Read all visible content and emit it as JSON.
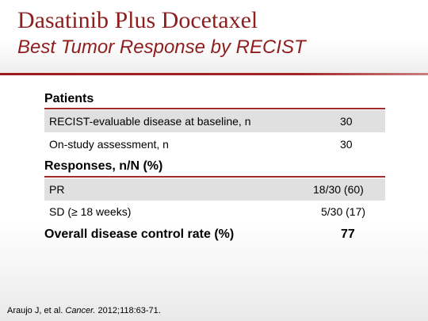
{
  "title": {
    "line1": "Dasatinib Plus Docetaxel",
    "line2": "Best Tumor Response by RECIST"
  },
  "sections": {
    "patients": {
      "heading": "Patients",
      "rows": [
        {
          "label": "RECIST-evaluable disease at baseline, n",
          "value": "30"
        },
        {
          "label": "On-study assessment, n",
          "value": "30"
        }
      ]
    },
    "responses": {
      "heading": "Responses, n/N (%)",
      "rows": [
        {
          "label": "PR",
          "value": "18/30 (60)"
        },
        {
          "label": "SD (≥ 18 weeks)",
          "value": "5/30 (17)"
        }
      ]
    }
  },
  "overall": {
    "label": "Overall disease control rate (%)",
    "value": "77"
  },
  "citation": {
    "prefix": "Araujo J, et al. ",
    "journal": "Cancer.",
    "suffix": " 2012;118:63-71."
  },
  "colors": {
    "accent": "#8f1d1d",
    "rule": "#a52a2a",
    "shade": "#e0e0e0"
  }
}
